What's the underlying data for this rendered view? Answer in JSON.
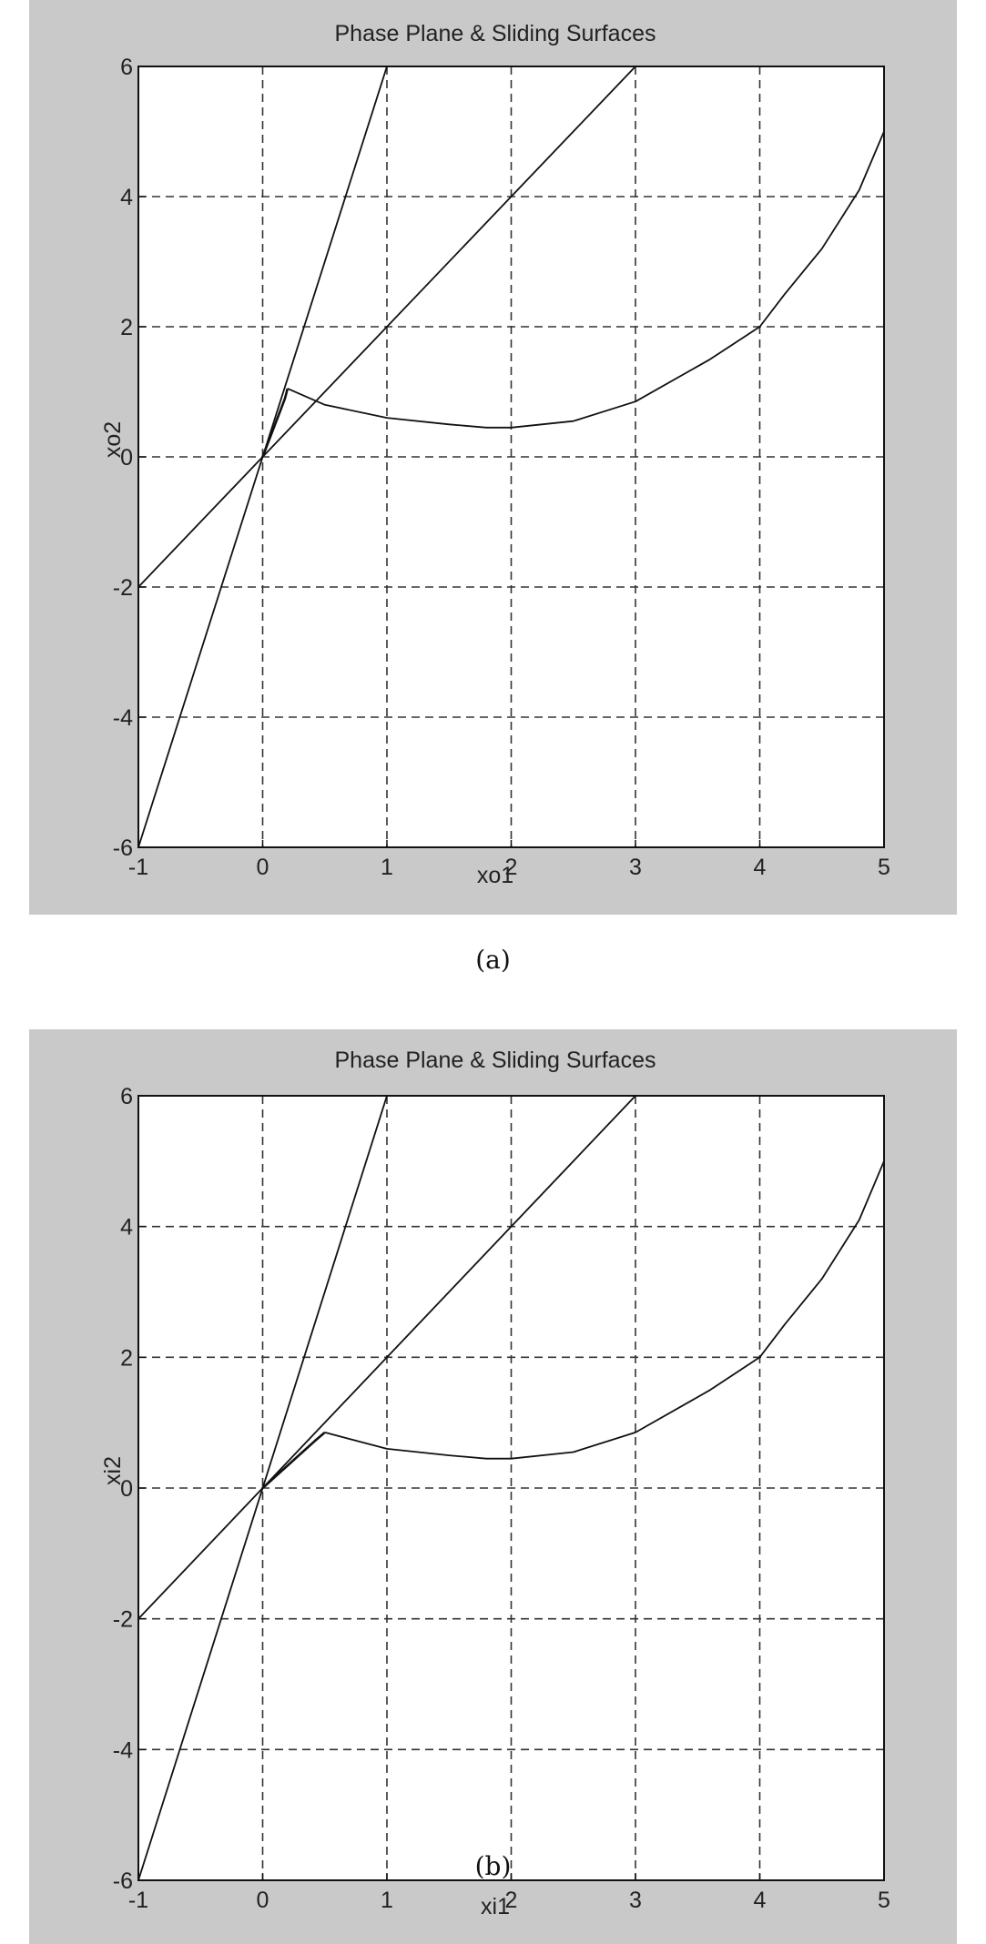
{
  "chart_data": [
    {
      "type": "line",
      "title": "Phase Plane & Sliding Surfaces",
      "xlabel": "xo1",
      "ylabel": "xo2",
      "xlim": [
        -1,
        5
      ],
      "ylim": [
        -6,
        6
      ],
      "xticks": [
        "-1",
        "0",
        "1",
        "2",
        "3",
        "4",
        "5"
      ],
      "yticks": [
        "-6",
        "-4",
        "-2",
        "0",
        "2",
        "4",
        "6"
      ],
      "grid": true,
      "caption": "(a)",
      "series": [
        {
          "x": [
            -1,
            1
          ],
          "y": [
            -6,
            6
          ]
        },
        {
          "x": [
            -1,
            3
          ],
          "y": [
            -2,
            6
          ]
        },
        {
          "x": [
            5,
            4.8,
            4.5,
            4.2,
            4.0,
            3.6,
            3.0,
            2.5,
            2.0,
            1.8,
            1.5,
            1.0,
            0.5,
            0.2
          ],
          "y": [
            5.0,
            4.1,
            3.2,
            2.5,
            2.0,
            1.5,
            0.85,
            0.55,
            0.45,
            0.45,
            0.5,
            0.6,
            0.8,
            1.05
          ]
        },
        {
          "x": [
            0.2,
            0.18,
            0.15,
            0.12,
            0.09,
            0.06,
            0.03,
            0.0
          ],
          "y": [
            1.05,
            0.9,
            0.75,
            0.6,
            0.45,
            0.3,
            0.15,
            0.0
          ]
        }
      ]
    },
    {
      "type": "line",
      "title": "Phase Plane & Sliding Surfaces",
      "xlabel": "xi1",
      "ylabel": "xi2",
      "xlim": [
        -1,
        5
      ],
      "ylim": [
        -6,
        6
      ],
      "xticks": [
        "-1",
        "0",
        "1",
        "2",
        "3",
        "4",
        "5"
      ],
      "yticks": [
        "-6",
        "-4",
        "-2",
        "0",
        "2",
        "4",
        "6"
      ],
      "grid": true,
      "caption": "(b)",
      "series": [
        {
          "x": [
            -1,
            1
          ],
          "y": [
            -6,
            6
          ]
        },
        {
          "x": [
            -1,
            3
          ],
          "y": [
            -2,
            6
          ]
        },
        {
          "x": [
            5,
            4.8,
            4.5,
            4.2,
            4.0,
            3.6,
            3.0,
            2.5,
            2.0,
            1.8,
            1.5,
            1.0,
            0.5
          ],
          "y": [
            5.0,
            4.1,
            3.2,
            2.5,
            2.0,
            1.5,
            0.85,
            0.55,
            0.45,
            0.45,
            0.5,
            0.6,
            0.85
          ]
        },
        {
          "x": [
            0.5,
            0.42,
            0.35,
            0.28,
            0.21,
            0.14,
            0.07,
            0.0
          ],
          "y": [
            0.85,
            0.72,
            0.6,
            0.48,
            0.36,
            0.24,
            0.12,
            0.0
          ]
        }
      ]
    }
  ]
}
